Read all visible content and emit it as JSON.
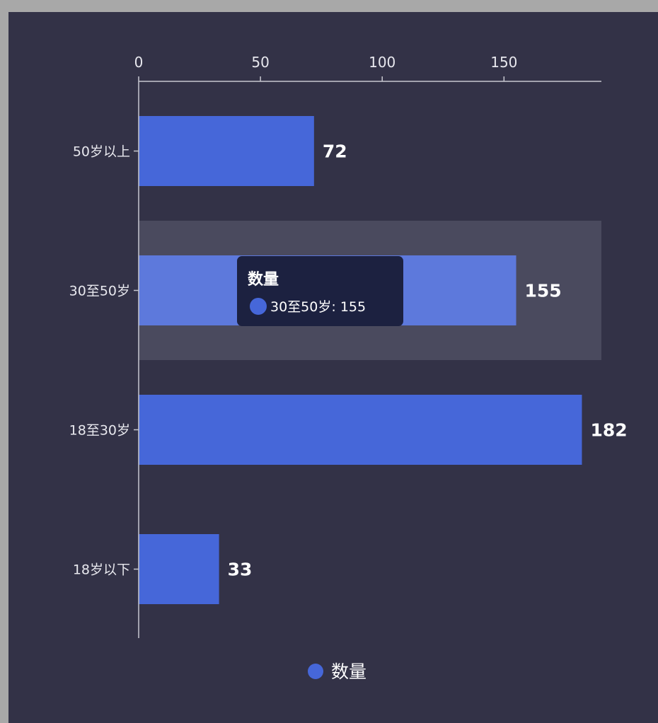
{
  "chart_data": {
    "type": "bar",
    "orientation": "horizontal",
    "categories": [
      "50岁以上",
      "30至50岁",
      "18至30岁",
      "18岁以下"
    ],
    "series": [
      {
        "name": "数量",
        "values": [
          72,
          155,
          182,
          33
        ]
      }
    ],
    "x_ticks": [
      "0",
      "50",
      "100",
      "150"
    ],
    "xlim": [
      0,
      190
    ],
    "x_axis_position": "top",
    "grid": false,
    "legend": {
      "entries": [
        "数量"
      ],
      "position": "bottom-center"
    },
    "highlighted_category": "30至50岁",
    "tooltip": {
      "title": "数量",
      "category": "30至50岁",
      "value": "155"
    }
  },
  "colors": {
    "background": "#333247",
    "bar": "#4667d9",
    "bar_highlight": "#5d79dc",
    "highlight_band": "#4a4a5e",
    "axis": "#c8c8d0",
    "tooltip_bg": "#1c2140",
    "outer": "#a8a8a8"
  }
}
